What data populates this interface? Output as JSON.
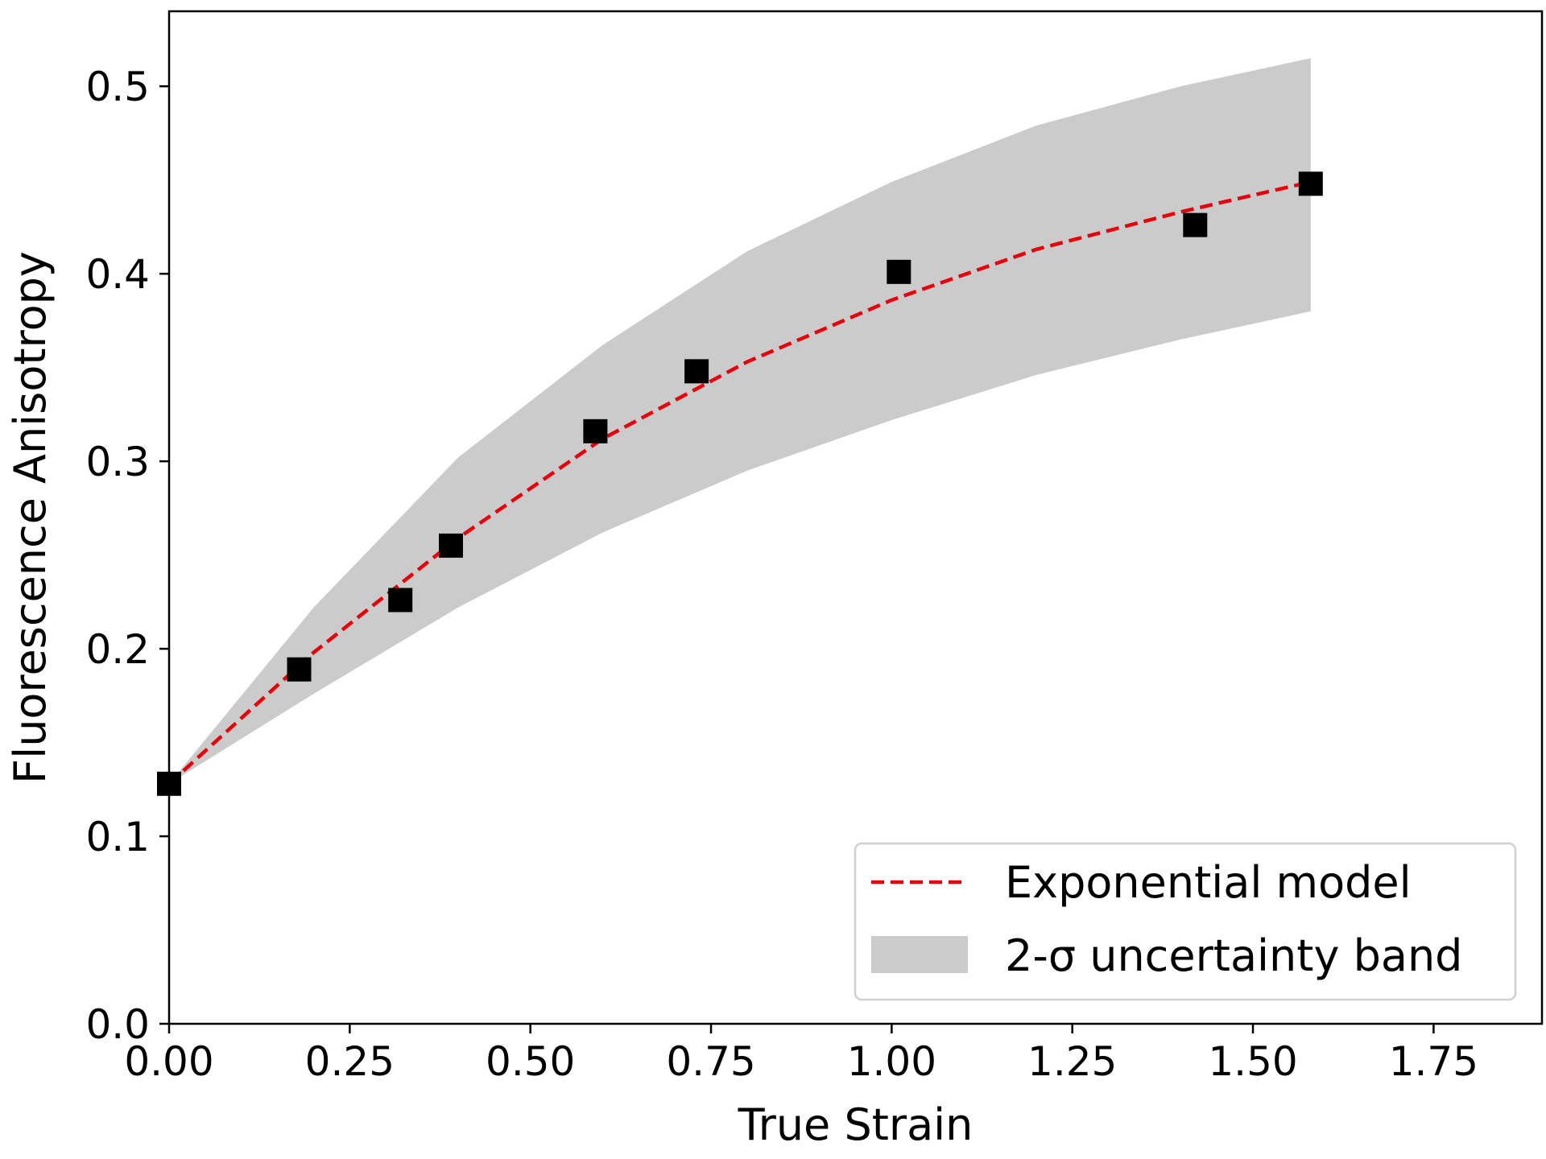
{
  "chart_data": {
    "type": "scatter",
    "title": "",
    "xlabel": "True Strain",
    "ylabel": "Fluorescence Anisotropy",
    "xlim": [
      0.0,
      1.9
    ],
    "ylim": [
      0.0,
      0.54
    ],
    "x_ticks": [
      "0.00",
      "0.25",
      "0.50",
      "0.75",
      "1.00",
      "1.25",
      "1.50",
      "1.75"
    ],
    "y_ticks": [
      "0.0",
      "0.1",
      "0.2",
      "0.3",
      "0.4",
      "0.5"
    ],
    "grid": false,
    "legend_position": "bottom-right",
    "points": {
      "x": [
        0.0,
        0.18,
        0.32,
        0.39,
        0.59,
        0.73,
        1.01,
        1.42,
        1.58
      ],
      "y": [
        0.128,
        0.189,
        0.226,
        0.255,
        0.316,
        0.348,
        0.401,
        0.426,
        0.448
      ],
      "color": "#000000",
      "marker": "square"
    },
    "series": [
      {
        "name": "Exponential model",
        "style": "dashed",
        "color": "#e8000b",
        "x": [
          0.0,
          0.2,
          0.4,
          0.6,
          0.8,
          1.0,
          1.2,
          1.4,
          1.58
        ],
        "y": [
          0.128,
          0.198,
          0.259,
          0.312,
          0.353,
          0.386,
          0.413,
          0.433,
          0.449
        ]
      },
      {
        "name": "2-σ uncertainty band",
        "type": "area",
        "color": "#cbcbcb",
        "x": [
          0.0,
          0.2,
          0.4,
          0.6,
          0.8,
          1.0,
          1.2,
          1.4,
          1.58
        ],
        "lower": [
          0.128,
          0.176,
          0.222,
          0.262,
          0.295,
          0.322,
          0.346,
          0.365,
          0.38
        ],
        "upper": [
          0.128,
          0.222,
          0.302,
          0.362,
          0.412,
          0.449,
          0.479,
          0.5,
          0.515
        ]
      }
    ]
  }
}
